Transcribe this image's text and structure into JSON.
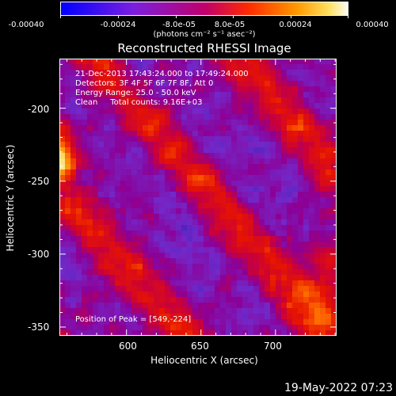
{
  "colorbar": {
    "ticks": [
      "-0.00040",
      "-0.00024",
      "-8.0e-05",
      "8.0e-05",
      "0.00024",
      "0.00040"
    ],
    "tick_values": [
      -0.0004,
      -0.00024,
      -8e-05,
      8e-05,
      0.00024,
      0.0004
    ],
    "units": "(photons cm⁻² s⁻¹ asec⁻²)",
    "colors": [
      "#0000ff",
      "#5a1fd0",
      "#8a2be2",
      "#b8007a",
      "#d20000",
      "#ff5a00",
      "#ffb400",
      "#ffff80",
      "#ffffff"
    ]
  },
  "chart_data": {
    "type": "heatmap",
    "title": "Reconstructed RHESSI Image",
    "xlabel": "Heliocentric X (arcsec)",
    "ylabel": "Heliocentric Y (arcsec)",
    "xlim": [
      555,
      741
    ],
    "ylim": [
      -356,
      -166
    ],
    "x_ticks": [
      600,
      650,
      700
    ],
    "y_ticks": [
      -200,
      -250,
      -300,
      -350
    ],
    "peak_position": [
      549,
      -224
    ],
    "zlim": [
      -0.0004,
      0.0004
    ]
  },
  "info": {
    "line1": "21-Dec-2013 17:43:24.000 to 17:49:24.000",
    "line2": "Detectors: 3F 4F 5F 6F 7F 8F, Att 0",
    "line3": "Energy Range: 25.0 - 50.0 keV",
    "line4": "Clean     Total counts: 9.16E+03",
    "peak": "Position of Peak = [549,-224]"
  },
  "datestamp": "19-May-2022 07:23"
}
